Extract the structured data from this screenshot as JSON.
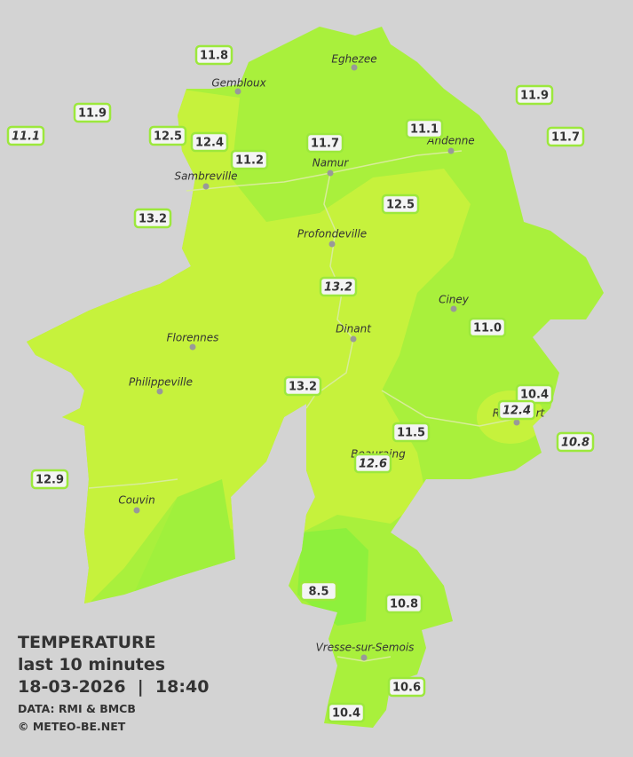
{
  "title": {
    "lines": [
      "TEMPERATURE",
      "last 10 minutes",
      "18-03-2026  |  18:40"
    ]
  },
  "credits": [
    "DATA: RMI & BMCB",
    "© METEO-BE.NET"
  ],
  "cities": [
    "Eghezee",
    "Gembloux",
    "Andenne",
    "Namur",
    "Sambreville",
    "Profondeville",
    "Ciney",
    "Dinant",
    "Florennes",
    "Philippeville",
    "Rochefort",
    "Beauraing",
    "Couvin",
    "Vresse-sur-Semois"
  ],
  "stations": [
    {
      "label": "11.8",
      "italic": false
    },
    {
      "label": "11.9",
      "italic": false
    },
    {
      "label": "11.1",
      "italic": true
    },
    {
      "label": "12.5",
      "italic": false
    },
    {
      "label": "12.4",
      "italic": false
    },
    {
      "label": "11.2",
      "italic": false
    },
    {
      "label": "11.7",
      "italic": false
    },
    {
      "label": "11.1",
      "italic": false
    },
    {
      "label": "11.9",
      "italic": false
    },
    {
      "label": "11.7",
      "italic": false
    },
    {
      "label": "13.2",
      "italic": false
    },
    {
      "label": "12.5",
      "italic": false
    },
    {
      "label": "13.2",
      "italic": true
    },
    {
      "label": "11.0",
      "italic": false
    },
    {
      "label": "13.2",
      "italic": false
    },
    {
      "label": "10.4",
      "italic": false
    },
    {
      "label": "12.4",
      "italic": true
    },
    {
      "label": "11.5",
      "italic": false
    },
    {
      "label": "10.8",
      "italic": true
    },
    {
      "label": "12.6",
      "italic": true
    },
    {
      "label": "12.9",
      "italic": false
    },
    {
      "label": "8.5",
      "italic": false
    },
    {
      "label": "10.8",
      "italic": false
    },
    {
      "label": "10.6",
      "italic": false
    },
    {
      "label": "10.4",
      "italic": false
    }
  ]
}
